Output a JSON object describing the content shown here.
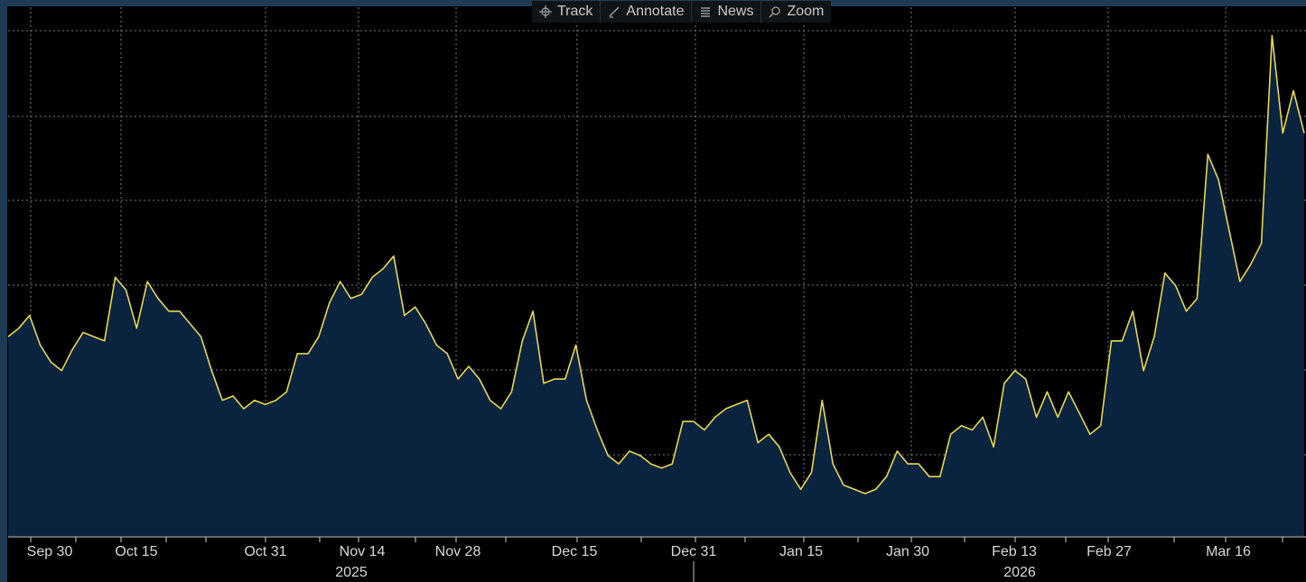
{
  "toolbar": {
    "items": [
      {
        "label": "Track",
        "icon": "crosshair-icon"
      },
      {
        "label": "Annotate",
        "icon": "pencil-icon"
      },
      {
        "label": "News",
        "icon": "news-icon"
      },
      {
        "label": "Zoom",
        "icon": "magnifier-icon"
      }
    ]
  },
  "colors": {
    "background": "#000000",
    "line": "#e8d84a",
    "area": "#0a2440",
    "grid": "#7a7a7a",
    "text": "#d9d9d9",
    "frame": "#1e3b55"
  },
  "chart_data": {
    "type": "area",
    "title": "",
    "xlabel": "",
    "ylabel": "",
    "grid": true,
    "x_tick_labels": [
      "Sep 30",
      "Oct 15",
      "Oct 31",
      "Nov 14",
      "Nov 28",
      "Dec 15",
      "Dec 31",
      "Jan 15",
      "Jan 30",
      "Feb 13",
      "Feb 27",
      "Mar 16"
    ],
    "year_labels": [
      "2025",
      "2026"
    ],
    "ylim": [
      0,
      6
    ],
    "series": [
      {
        "values": [
          2.35,
          2.45,
          2.6,
          2.25,
          2.05,
          1.95,
          2.2,
          2.4,
          2.35,
          2.3,
          3.05,
          2.9,
          2.45,
          3.0,
          2.8,
          2.65,
          2.65,
          2.5,
          2.35,
          1.95,
          1.6,
          1.65,
          1.5,
          1.6,
          1.55,
          1.6,
          1.7,
          2.15,
          2.15,
          2.35,
          2.75,
          3.0,
          2.8,
          2.85,
          3.05,
          3.15,
          3.3,
          2.6,
          2.7,
          2.5,
          2.25,
          2.15,
          1.85,
          2.0,
          1.85,
          1.6,
          1.5,
          1.7,
          2.3,
          2.65,
          1.8,
          1.85,
          1.85,
          2.25,
          1.6,
          1.25,
          0.95,
          0.85,
          1.0,
          0.95,
          0.85,
          0.8,
          0.85,
          1.35,
          1.35,
          1.25,
          1.4,
          1.5,
          1.55,
          1.6,
          1.1,
          1.2,
          1.05,
          0.75,
          0.55,
          0.75,
          1.6,
          0.85,
          0.6,
          0.55,
          0.5,
          0.55,
          0.7,
          1.0,
          0.85,
          0.85,
          0.7,
          0.7,
          1.2,
          1.3,
          1.25,
          1.4,
          1.05,
          1.8,
          1.95,
          1.85,
          1.4,
          1.7,
          1.4,
          1.7,
          1.45,
          1.2,
          1.3,
          2.3,
          2.3,
          2.65,
          1.95,
          2.35,
          3.1,
          2.95,
          2.65,
          2.8,
          4.5,
          4.2,
          3.6,
          3.0,
          3.2,
          3.45,
          5.9,
          4.75,
          5.25,
          4.75
        ]
      }
    ]
  }
}
